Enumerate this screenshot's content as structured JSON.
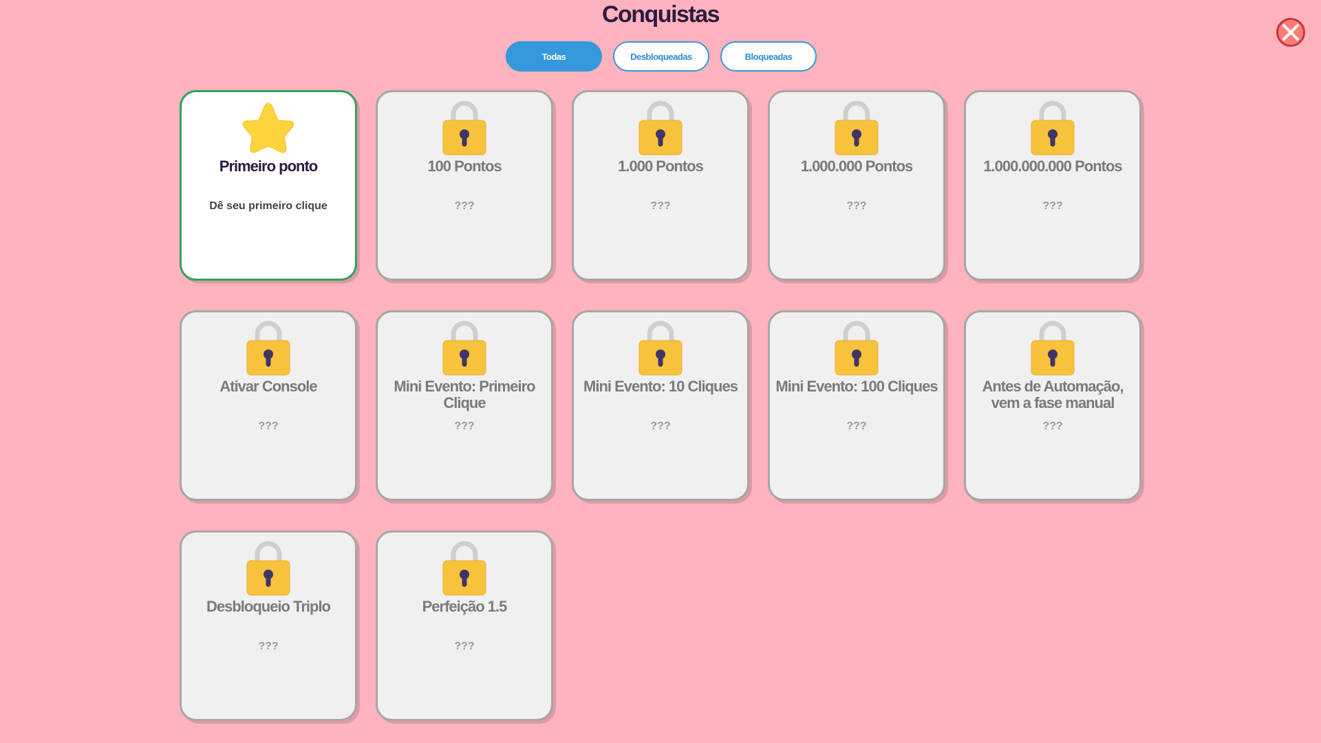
{
  "title": "Conquistas",
  "tabs": [
    {
      "label": "Todas",
      "active": true
    },
    {
      "label": "Desbloqueadas",
      "active": false
    },
    {
      "label": "Bloqueadas",
      "active": false
    }
  ],
  "achievements": [
    {
      "name": "Primeiro ponto",
      "desc": "Dê seu primeiro clique",
      "unlocked": true,
      "icon": "star-icon"
    },
    {
      "name": "100 Pontos",
      "desc": "???",
      "unlocked": false,
      "icon": "lock-icon"
    },
    {
      "name": "1.000 Pontos",
      "desc": "???",
      "unlocked": false,
      "icon": "lock-icon"
    },
    {
      "name": "1.000.000 Pontos",
      "desc": "???",
      "unlocked": false,
      "icon": "lock-icon"
    },
    {
      "name": "1.000.000.000 Pontos",
      "desc": "???",
      "unlocked": false,
      "icon": "lock-icon"
    },
    {
      "name": "Ativar Console",
      "desc": "???",
      "unlocked": false,
      "icon": "lock-icon"
    },
    {
      "name": "Mini Evento: Primeiro Clique",
      "desc": "???",
      "unlocked": false,
      "icon": "lock-icon"
    },
    {
      "name": "Mini Evento: 10 Cliques",
      "desc": "???",
      "unlocked": false,
      "icon": "lock-icon"
    },
    {
      "name": "Mini Evento: 100 Cliques",
      "desc": "???",
      "unlocked": false,
      "icon": "lock-icon"
    },
    {
      "name": "Antes de Automação, vem a fase manual",
      "desc": "???",
      "unlocked": false,
      "icon": "lock-icon"
    },
    {
      "name": "Desbloqueio Triplo",
      "desc": "???",
      "unlocked": false,
      "icon": "lock-icon"
    },
    {
      "name": "Perfeição 1.5",
      "desc": "???",
      "unlocked": false,
      "icon": "lock-icon"
    }
  ],
  "colors": {
    "background": "#ffb3bd",
    "accent": "#3498db",
    "unlocked_border": "#2fa35a",
    "close": "#ff7b78"
  }
}
